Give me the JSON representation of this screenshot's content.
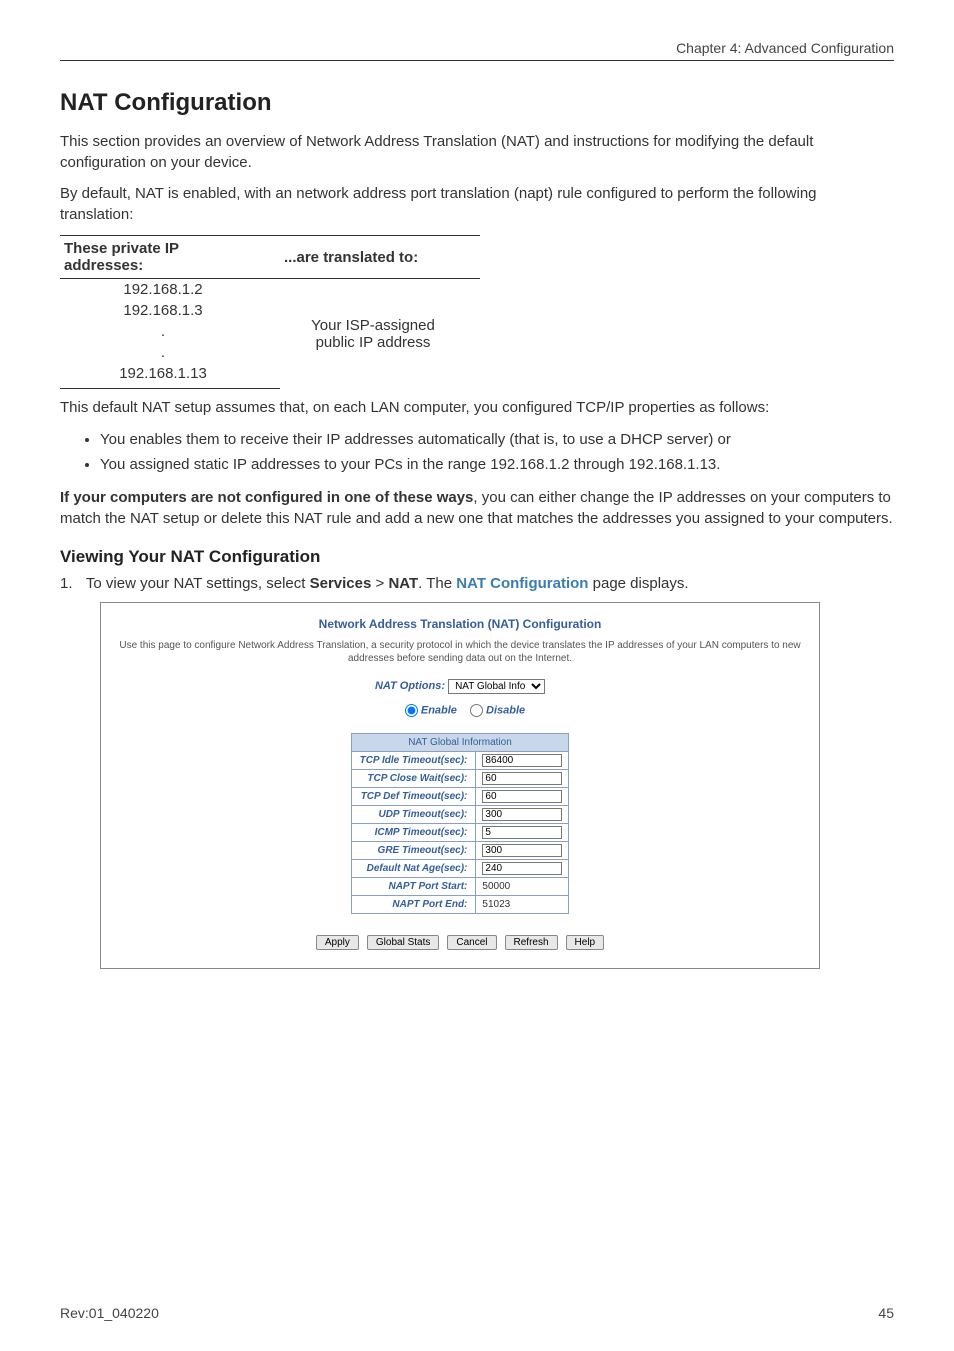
{
  "header": {
    "chapter": "Chapter 4: Advanced Configuration"
  },
  "footer": {
    "rev": "Rev:01_040220",
    "page": "45"
  },
  "title": "NAT Configuration",
  "intro1": "This section provides an overview of Network Address Translation (NAT) and instructions for modifying the default configuration on your device.",
  "intro2": "By default, NAT is enabled, with an network address port translation (napt) rule configured to perform the following translation:",
  "ipTable": {
    "head1": "These private IP addresses:",
    "head2": "...are translated to:",
    "left": [
      "192.168.1.2",
      "192.168.1.3",
      ".",
      ".",
      "192.168.1.13"
    ],
    "right1": "Your ISP-assigned",
    "right2": "public IP address"
  },
  "afterTable": "This default NAT setup assumes that, on each LAN computer, you configured TCP/IP properties as follows:",
  "bullets": [
    "You enables them to receive their IP addresses automatically (that is, to use a DHCP server) or",
    "You assigned static IP addresses to your PCs in the range 192.168.1.2 through 192.168.1.13."
  ],
  "configNote": {
    "bold": "If your computers are not configured in one of these ways",
    "rest": ", you can either change the IP addresses on your computers to match the NAT setup or delete this NAT rule and add a new one that matches the addresses you assigned to your computers."
  },
  "subTitle": "Viewing Your NAT Configuration",
  "step1": {
    "num": "1.",
    "pre": "To view your NAT settings, select ",
    "services": "Services",
    "gt": " > ",
    "nat": "NAT",
    "mid": ". The ",
    "link": "NAT Configuration",
    "post": " page displays."
  },
  "shot": {
    "title": "Network Address Translation (NAT) Configuration",
    "desc": "Use this page to configure Network Address Translation, a security protocol in which the device translates the IP addresses of your LAN computers to new addresses before sending data out on the Internet.",
    "optionsLabel": "NAT Options:",
    "optionsValue": "NAT Global Info",
    "enable": "Enable",
    "disable": "Disable",
    "infoHeader": "NAT Global Information",
    "rows": [
      {
        "label": "TCP Idle Timeout(sec):",
        "value": "86400",
        "input": true
      },
      {
        "label": "TCP Close Wait(sec):",
        "value": "60",
        "input": true
      },
      {
        "label": "TCP Def Timeout(sec):",
        "value": "60",
        "input": true
      },
      {
        "label": "UDP Timeout(sec):",
        "value": "300",
        "input": true
      },
      {
        "label": "ICMP Timeout(sec):",
        "value": "5",
        "input": true
      },
      {
        "label": "GRE Timeout(sec):",
        "value": "300",
        "input": true
      },
      {
        "label": "Default Nat Age(sec):",
        "value": "240",
        "input": true
      },
      {
        "label": "NAPT Port Start:",
        "value": "50000",
        "input": false
      },
      {
        "label": "NAPT Port End:",
        "value": "51023",
        "input": false
      }
    ],
    "buttons": [
      "Apply",
      "Global Stats",
      "Cancel",
      "Refresh",
      "Help"
    ]
  }
}
